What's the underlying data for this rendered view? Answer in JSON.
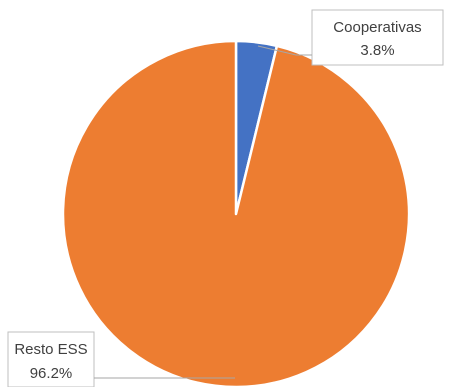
{
  "chart_data": {
    "type": "pie",
    "title": "",
    "start_angle_deg": 0,
    "direction": "clockwise",
    "slices": [
      {
        "name": "Cooperativas",
        "value": 3.8,
        "label": "3.8%",
        "color": "#4472C4"
      },
      {
        "name": "Resto ESS",
        "value": 96.2,
        "label": "96.2%",
        "color": "#ED7D31"
      }
    ],
    "legend": "none",
    "data_labels": "callout"
  }
}
